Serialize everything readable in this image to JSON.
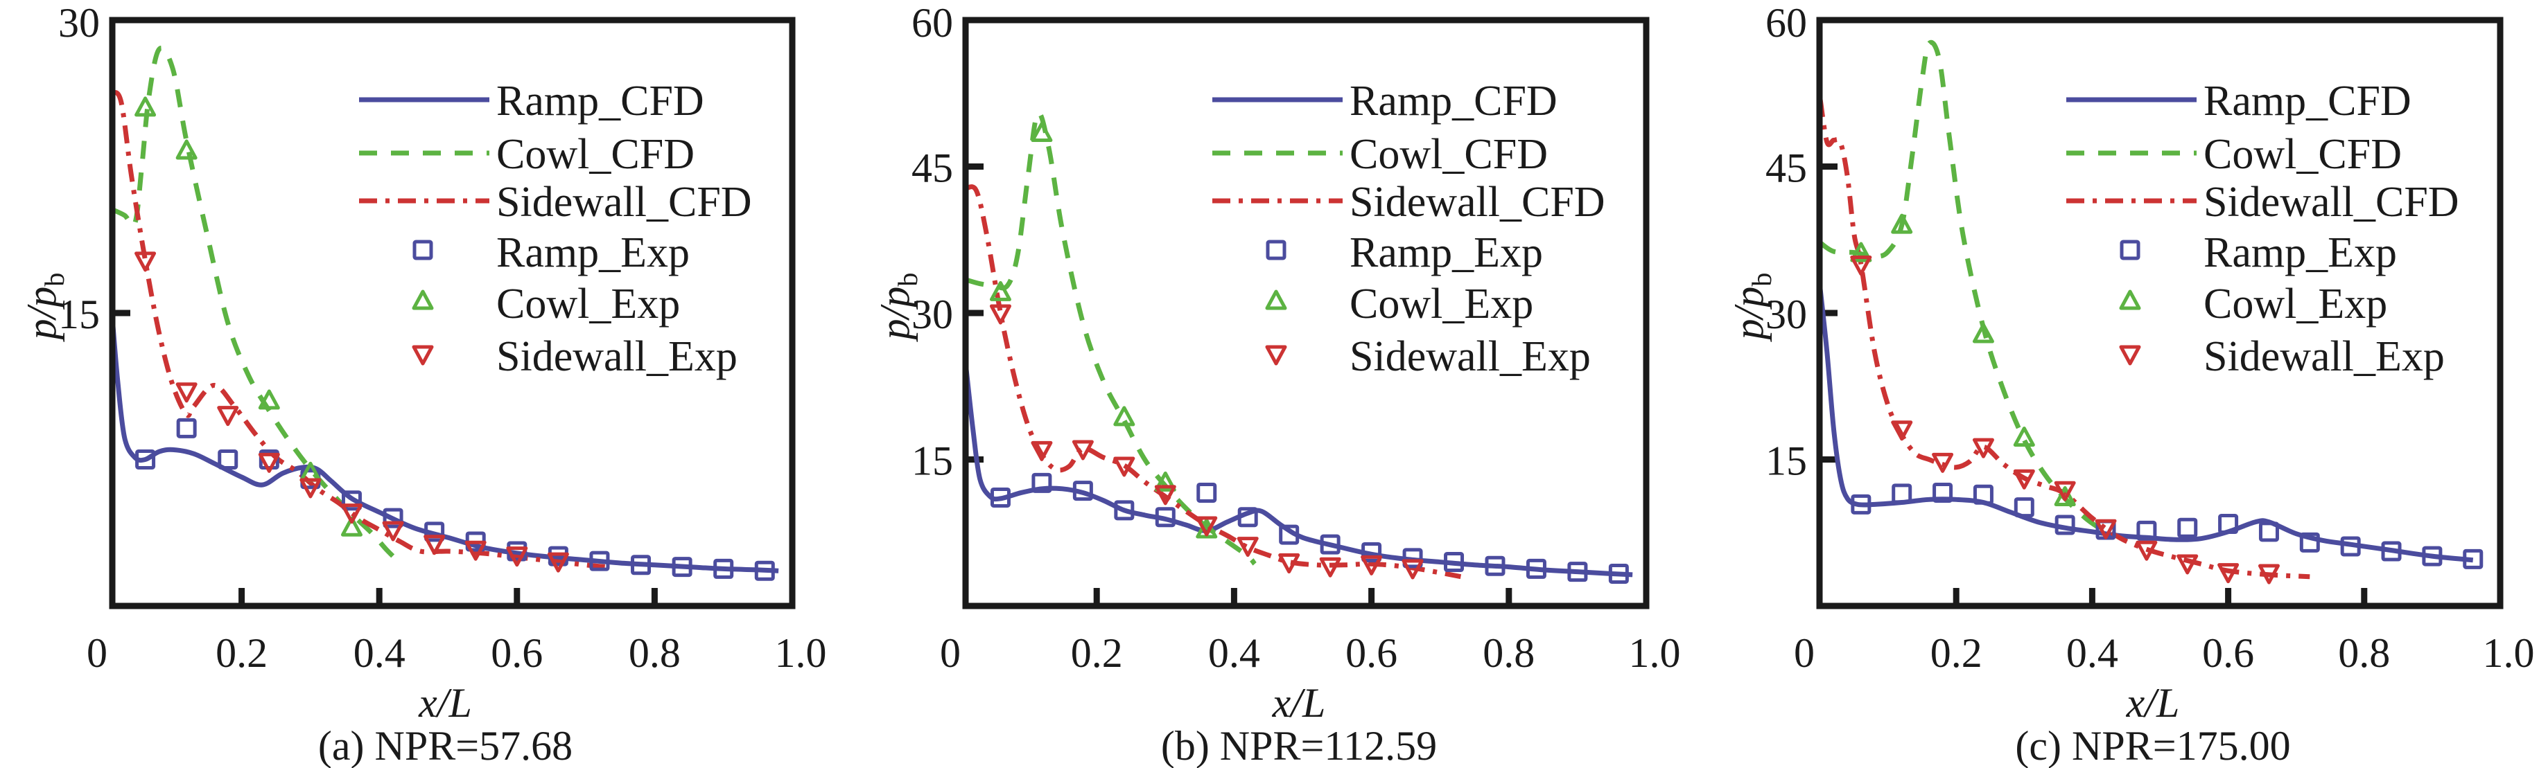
{
  "figure": {
    "panels_count": 3
  },
  "chart_data": [
    {
      "type": "line",
      "panel_label": "(a) NPR=57.68",
      "xlabel": "x/L",
      "ylabel": "p/p_b",
      "xlim": [
        0,
        1.0
      ],
      "ylim": [
        0,
        30
      ],
      "xticks": [
        0,
        0.2,
        0.4,
        0.6,
        0.8,
        1.0
      ],
      "xtick_labels": [
        "0",
        "0.2",
        "0.4",
        "0.6",
        "0.8",
        "1.0"
      ],
      "yticks": [
        15,
        30
      ],
      "ytick_labels": [
        "15",
        "30"
      ],
      "grid": false,
      "legend_position": "top-right",
      "series": [
        {
          "name": "Ramp_CFD",
          "kind": "line",
          "style": "solid",
          "color": "#4b4c9e",
          "x": [
            0.012,
            0.02,
            0.03,
            0.045,
            0.06,
            0.08,
            0.1,
            0.13,
            0.16,
            0.2,
            0.23,
            0.26,
            0.29,
            0.31,
            0.33,
            0.36,
            0.4,
            0.45,
            0.5,
            0.55,
            0.6,
            0.65,
            0.7,
            0.75,
            0.8,
            0.85,
            0.9,
            0.95,
            0.98
          ],
          "y": [
            14.8,
            11.5,
            8.6,
            7.6,
            7.5,
            7.9,
            8.0,
            7.8,
            7.3,
            6.6,
            6.2,
            6.8,
            7.1,
            7.0,
            6.4,
            5.5,
            4.8,
            4.0,
            3.5,
            3.0,
            2.7,
            2.5,
            2.35,
            2.2,
            2.1,
            2.0,
            1.9,
            1.85,
            1.8
          ]
        },
        {
          "name": "Cowl_CFD",
          "kind": "line",
          "style": "dashed",
          "color": "#5cb342",
          "x": [
            0.012,
            0.03,
            0.045,
            0.055,
            0.065,
            0.08,
            0.1,
            0.12,
            0.15,
            0.18,
            0.21,
            0.24,
            0.27,
            0.3,
            0.33,
            0.36,
            0.39,
            0.41,
            0.43
          ],
          "y": [
            20.3,
            20.0,
            19.6,
            22.5,
            26.0,
            28.5,
            27.5,
            23.8,
            19.0,
            14.5,
            11.8,
            10.0,
            8.4,
            7.0,
            5.8,
            4.7,
            3.7,
            2.9,
            2.2
          ]
        },
        {
          "name": "Sidewall_CFD",
          "kind": "line",
          "style": "dashdot",
          "color": "#cc3333",
          "x": [
            0.012,
            0.025,
            0.04,
            0.06,
            0.08,
            0.1,
            0.12,
            0.13,
            0.16,
            0.19,
            0.22,
            0.25,
            0.28,
            0.31,
            0.34,
            0.37,
            0.4,
            0.43,
            0.46,
            0.5,
            0.55,
            0.6,
            0.65,
            0.7,
            0.73
          ],
          "y": [
            26.3,
            25.8,
            22.0,
            17.7,
            14.0,
            11.3,
            9.8,
            10.2,
            11.3,
            10.2,
            8.8,
            7.6,
            6.9,
            6.0,
            5.3,
            4.5,
            3.9,
            3.3,
            2.8,
            2.8,
            2.7,
            2.5,
            2.3,
            2.1,
            2.0
          ]
        },
        {
          "name": "Ramp_Exp",
          "kind": "marker",
          "marker": "square",
          "color": "#4b4c9e",
          "x": [
            0.06,
            0.12,
            0.18,
            0.24,
            0.3,
            0.36,
            0.42,
            0.48,
            0.54,
            0.6,
            0.66,
            0.72,
            0.78,
            0.84,
            0.9,
            0.96
          ],
          "y": [
            7.5,
            9.1,
            7.5,
            7.5,
            6.5,
            5.4,
            4.5,
            3.8,
            3.3,
            2.8,
            2.55,
            2.3,
            2.1,
            2.0,
            1.9,
            1.8
          ]
        },
        {
          "name": "Cowl_Exp",
          "kind": "marker",
          "marker": "triangle-up",
          "color": "#5cb342",
          "x": [
            0.06,
            0.12,
            0.24,
            0.3,
            0.36
          ],
          "y": [
            25.5,
            23.3,
            10.5,
            6.8,
            4.0
          ]
        },
        {
          "name": "Sidewall_Exp",
          "kind": "marker",
          "marker": "triangle-down",
          "color": "#cc3333",
          "x": [
            0.06,
            0.12,
            0.18,
            0.24,
            0.3,
            0.36,
            0.42,
            0.48,
            0.54,
            0.6,
            0.66
          ],
          "y": [
            17.7,
            11.0,
            9.8,
            7.4,
            6.1,
            4.8,
            3.9,
            3.2,
            2.9,
            2.6,
            2.3
          ]
        }
      ]
    },
    {
      "type": "line",
      "panel_label": "(b) NPR=112.59",
      "xlabel": "x/L",
      "ylabel": "p/p_b",
      "xlim": [
        0,
        1.0
      ],
      "ylim": [
        0,
        60
      ],
      "xticks": [
        0,
        0.2,
        0.4,
        0.6,
        0.8,
        1.0
      ],
      "xtick_labels": [
        "0",
        "0.2",
        "0.4",
        "0.6",
        "0.8",
        "1.0"
      ],
      "yticks": [
        15,
        30,
        45,
        60
      ],
      "ytick_labels": [
        "15",
        "30",
        "45",
        "60"
      ],
      "grid": false,
      "legend_position": "top-right",
      "series": [
        {
          "name": "Ramp_CFD",
          "kind": "line",
          "style": "solid",
          "color": "#4b4c9e",
          "x": [
            0.01,
            0.02,
            0.03,
            0.045,
            0.06,
            0.09,
            0.12,
            0.15,
            0.18,
            0.21,
            0.24,
            0.27,
            0.3,
            0.33,
            0.36,
            0.39,
            0.42,
            0.44,
            0.47,
            0.5,
            0.55,
            0.6,
            0.65,
            0.7,
            0.75,
            0.8,
            0.85,
            0.9,
            0.95,
            0.98
          ],
          "y": [
            24.3,
            18.0,
            13.0,
            11.2,
            11.0,
            11.6,
            12.0,
            12.0,
            11.6,
            10.8,
            9.8,
            9.3,
            8.9,
            8.3,
            7.7,
            8.6,
            9.5,
            9.7,
            8.2,
            7.0,
            6.1,
            5.3,
            4.8,
            4.5,
            4.2,
            4.0,
            3.7,
            3.5,
            3.3,
            3.2
          ]
        },
        {
          "name": "Cowl_CFD",
          "kind": "line",
          "style": "dashed",
          "color": "#5cb342",
          "x": [
            0.01,
            0.03,
            0.05,
            0.07,
            0.085,
            0.1,
            0.114,
            0.13,
            0.15,
            0.18,
            0.21,
            0.24,
            0.27,
            0.3,
            0.33,
            0.36,
            0.39,
            0.42,
            0.43
          ],
          "y": [
            33.4,
            33.0,
            32.8,
            32.8,
            36.0,
            44.0,
            50.4,
            47.0,
            38.5,
            29.0,
            23.0,
            19.0,
            15.0,
            12.3,
            10.0,
            8.1,
            6.6,
            5.1,
            4.3
          ]
        },
        {
          "name": "Sidewall_CFD",
          "kind": "line",
          "style": "dashdot",
          "color": "#cc3333",
          "x": [
            0.01,
            0.025,
            0.04,
            0.06,
            0.08,
            0.1,
            0.12,
            0.14,
            0.16,
            0.18,
            0.21,
            0.24,
            0.27,
            0.3,
            0.33,
            0.36,
            0.39,
            0.42,
            0.45,
            0.48,
            0.52,
            0.56,
            0.6,
            0.65,
            0.7,
            0.73
          ],
          "y": [
            42.8,
            42.5,
            38.0,
            30.0,
            23.5,
            18.5,
            15.5,
            14.0,
            14.3,
            16.1,
            15.2,
            14.4,
            12.7,
            11.2,
            9.7,
            8.3,
            7.2,
            6.0,
            5.2,
            4.5,
            4.2,
            4.2,
            4.3,
            4.0,
            3.4,
            3.0
          ]
        },
        {
          "name": "Ramp_Exp",
          "kind": "marker",
          "marker": "square",
          "color": "#4b4c9e",
          "x": [
            0.06,
            0.12,
            0.18,
            0.24,
            0.3,
            0.36,
            0.42,
            0.48,
            0.54,
            0.6,
            0.66,
            0.72,
            0.78,
            0.84,
            0.9,
            0.96
          ],
          "y": [
            11.1,
            12.6,
            11.8,
            9.8,
            9.1,
            11.6,
            9.1,
            7.3,
            6.3,
            5.5,
            4.9,
            4.5,
            4.1,
            3.8,
            3.5,
            3.3
          ]
        },
        {
          "name": "Cowl_Exp",
          "kind": "marker",
          "marker": "triangle-up",
          "color": "#5cb342",
          "x": [
            0.06,
            0.12,
            0.24,
            0.3,
            0.36
          ],
          "y": [
            32.1,
            48.4,
            19.3,
            12.6,
            7.8
          ]
        },
        {
          "name": "Sidewall_Exp",
          "kind": "marker",
          "marker": "triangle-down",
          "color": "#cc3333",
          "x": [
            0.06,
            0.12,
            0.18,
            0.24,
            0.3,
            0.36,
            0.42,
            0.48,
            0.54,
            0.6,
            0.66
          ],
          "y": [
            30.0,
            16.0,
            16.1,
            14.4,
            11.5,
            8.3,
            6.2,
            4.5,
            4.1,
            4.3,
            3.9
          ]
        }
      ]
    },
    {
      "type": "line",
      "panel_label": "(c) NPR=175.00",
      "xlabel": "x/L",
      "ylabel": "p/p_b",
      "xlim": [
        0,
        1.0
      ],
      "ylim": [
        0,
        60
      ],
      "xticks": [
        0,
        0.2,
        0.4,
        0.6,
        0.8,
        1.0
      ],
      "xtick_labels": [
        "0",
        "0.2",
        "0.4",
        "0.6",
        "0.8",
        "1.0"
      ],
      "yticks": [
        15,
        30,
        45,
        60
      ],
      "ytick_labels": [
        "15",
        "30",
        "45",
        "60"
      ],
      "grid": false,
      "legend_position": "top-right",
      "series": [
        {
          "name": "Ramp_CFD",
          "kind": "line",
          "style": "solid",
          "color": "#4b4c9e",
          "x": [
            0.0,
            0.01,
            0.02,
            0.03,
            0.04,
            0.055,
            0.08,
            0.12,
            0.16,
            0.2,
            0.24,
            0.28,
            0.32,
            0.36,
            0.4,
            0.44,
            0.48,
            0.52,
            0.56,
            0.6,
            0.64,
            0.66,
            0.7,
            0.74,
            0.78,
            0.84,
            0.9,
            0.96
          ],
          "y": [
            32.5,
            26.0,
            18.0,
            13.0,
            11.0,
            10.4,
            10.4,
            10.6,
            10.9,
            10.9,
            10.6,
            9.6,
            8.6,
            8.0,
            7.6,
            7.2,
            7.0,
            6.8,
            6.9,
            7.6,
            8.6,
            8.6,
            7.4,
            6.7,
            6.3,
            5.7,
            5.1,
            4.7
          ]
        },
        {
          "name": "Cowl_CFD",
          "kind": "line",
          "style": "dashed",
          "color": "#5cb342",
          "x": [
            0.0,
            0.02,
            0.05,
            0.08,
            0.1,
            0.12,
            0.135,
            0.15,
            0.16,
            0.175,
            0.19,
            0.21,
            0.24,
            0.27,
            0.3,
            0.33,
            0.36,
            0.39,
            0.41
          ],
          "y": [
            37.2,
            36.3,
            36.2,
            35.8,
            36.3,
            39.0,
            46.0,
            54.0,
            57.6,
            56.0,
            48.0,
            38.0,
            28.5,
            22.0,
            17.0,
            13.5,
            11.0,
            9.0,
            8.0
          ]
        },
        {
          "name": "Sidewall_CFD",
          "kind": "line",
          "style": "dashdot",
          "color": "#cc3333",
          "x": [
            0.0,
            0.01,
            0.02,
            0.03,
            0.04,
            0.05,
            0.06,
            0.08,
            0.1,
            0.12,
            0.14,
            0.16,
            0.18,
            0.2,
            0.22,
            0.24,
            0.27,
            0.3,
            0.33,
            0.36,
            0.4,
            0.44,
            0.48,
            0.52,
            0.56,
            0.6,
            0.66,
            0.72
          ],
          "y": [
            51.9,
            47.5,
            47.7,
            47.4,
            44.0,
            38.0,
            35.0,
            26.0,
            20.5,
            17.5,
            15.6,
            15.0,
            14.5,
            14.2,
            14.8,
            16.3,
            14.5,
            13.1,
            12.3,
            11.5,
            9.0,
            7.0,
            5.8,
            5.0,
            4.3,
            3.6,
            3.2,
            3.0
          ]
        },
        {
          "name": "Ramp_Exp",
          "kind": "marker",
          "marker": "square",
          "color": "#4b4c9e",
          "x": [
            0.06,
            0.12,
            0.18,
            0.24,
            0.3,
            0.36,
            0.42,
            0.48,
            0.54,
            0.6,
            0.66,
            0.72,
            0.78,
            0.84,
            0.9,
            0.96
          ],
          "y": [
            10.4,
            11.5,
            11.6,
            11.4,
            10.1,
            8.3,
            7.8,
            7.7,
            8.0,
            8.4,
            7.6,
            6.5,
            6.1,
            5.6,
            5.1,
            4.8
          ]
        },
        {
          "name": "Cowl_Exp",
          "kind": "marker",
          "marker": "triangle-up",
          "color": "#5cb342",
          "x": [
            0.06,
            0.12,
            0.24,
            0.3,
            0.36
          ],
          "y": [
            36.1,
            39.0,
            27.8,
            17.2,
            11.1
          ]
        },
        {
          "name": "Sidewall_Exp",
          "kind": "marker",
          "marker": "triangle-down",
          "color": "#cc3333",
          "x": [
            0.06,
            0.12,
            0.18,
            0.24,
            0.3,
            0.36,
            0.42,
            0.48,
            0.54,
            0.6,
            0.66
          ],
          "y": [
            35.0,
            18.1,
            14.8,
            16.3,
            13.1,
            11.9,
            8.0,
            5.8,
            4.4,
            3.5,
            3.4
          ]
        }
      ]
    }
  ]
}
